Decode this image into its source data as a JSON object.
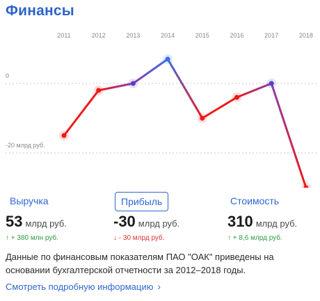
{
  "header": {
    "title": "Финансы"
  },
  "chart_data": {
    "type": "line",
    "x": [
      "2011",
      "2012",
      "2013",
      "2014",
      "2015",
      "2016",
      "2017",
      "2018"
    ],
    "series": [
      {
        "values": [
          -15,
          -2,
          0,
          7,
          -10,
          -4,
          0,
          -30
        ]
      }
    ],
    "y_tick_labels": [
      "0",
      "-20 млрд руб."
    ],
    "y_ticks": [
      0,
      -20
    ],
    "ylim": [
      -32,
      10
    ],
    "colors": {
      "negative": "#f01818",
      "positive": "#3c6de6",
      "gridline": "#c9c9c9",
      "tick": "#888888"
    }
  },
  "tabs": [
    {
      "label": "Выручка",
      "value": "53",
      "unit": "млрд руб.",
      "delta": "↑ + 380 млн руб.",
      "trend": "up"
    },
    {
      "label": "Прибыль",
      "value": "-30",
      "unit": "млрд руб.",
      "delta": "↓ - 30 млрд руб.",
      "trend": "down"
    },
    {
      "label": "Стоимость",
      "value": "310",
      "unit": "млрд руб.",
      "delta": "↑ + 8,6 млрд руб.",
      "trend": "up"
    }
  ],
  "active_tab": 1,
  "note": "Данные по финансовым показателям ПАО \"ОАК\" приведены на основании бухгалтерской отчетности за 2012–2018 годы.",
  "more_link": "Смотреть подробную информацию",
  "more_icon": "chevron-right-icon"
}
